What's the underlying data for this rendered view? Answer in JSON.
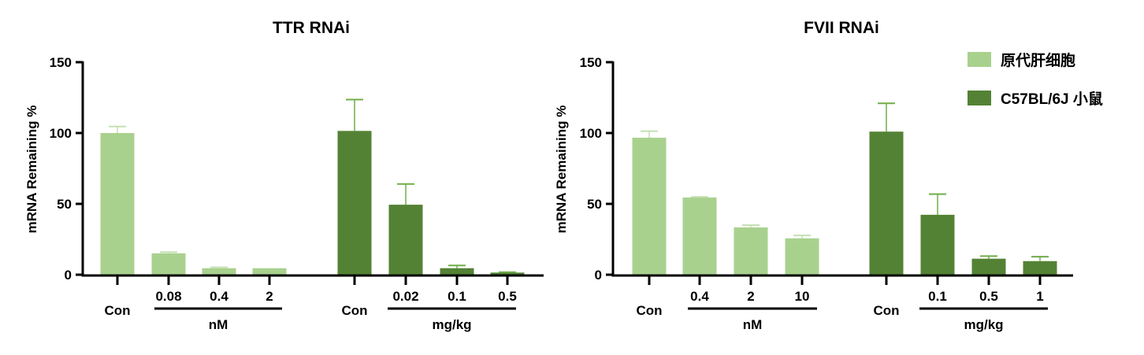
{
  "colors": {
    "cells": "#a9d18e",
    "mice": "#548235",
    "cells_err": "#c5e0b4",
    "mice_err": "#70ad47"
  },
  "legend": [
    {
      "label": "原代肝细胞",
      "color": "#a9d18e"
    },
    {
      "label": "C57BL/6J 小鼠",
      "color": "#548235"
    }
  ],
  "chart_data": [
    {
      "type": "bar",
      "title": "TTR RNAi",
      "ylabel": "mRNA Remaining %",
      "ylim": [
        0,
        150
      ],
      "yticks": [
        "0",
        "50",
        "100",
        "150"
      ],
      "categories": [
        "Con",
        "0.08",
        "0.4",
        "2",
        "Con",
        "0.02",
        "0.1",
        "0.5"
      ],
      "series_of_bar": [
        "cells",
        "cells",
        "cells",
        "cells",
        "mice",
        "mice",
        "mice",
        "mice"
      ],
      "values": [
        100,
        15.1,
        4.6,
        4.6,
        101.5,
        49.4,
        4.6,
        1.5
      ],
      "error_upper": [
        104.6,
        16,
        5.2,
        null,
        123.6,
        64,
        6.5,
        1.8
      ],
      "groups": [
        {
          "label": "nM"
        },
        {
          "label": "mg/kg"
        }
      ]
    },
    {
      "type": "bar",
      "title": "FVII RNAi",
      "ylabel": "mRNA Remaining %",
      "ylim": [
        0,
        150
      ],
      "yticks": [
        "0",
        "50",
        "100",
        "150"
      ],
      "categories": [
        "Con",
        "0.4",
        "2",
        "10",
        "Con",
        "0.1",
        "0.5",
        "1"
      ],
      "series_of_bar": [
        "cells",
        "cells",
        "cells",
        "cells",
        "mice",
        "mice",
        "mice",
        "mice"
      ],
      "values": [
        96.7,
        54.5,
        33.4,
        25.7,
        101,
        42.3,
        11.3,
        9.6
      ],
      "error_upper": [
        101.3,
        54.9,
        35,
        27.7,
        121,
        56.9,
        13.1,
        12.7
      ],
      "groups": [
        {
          "label": "nM"
        },
        {
          "label": "mg/kg"
        }
      ]
    }
  ]
}
